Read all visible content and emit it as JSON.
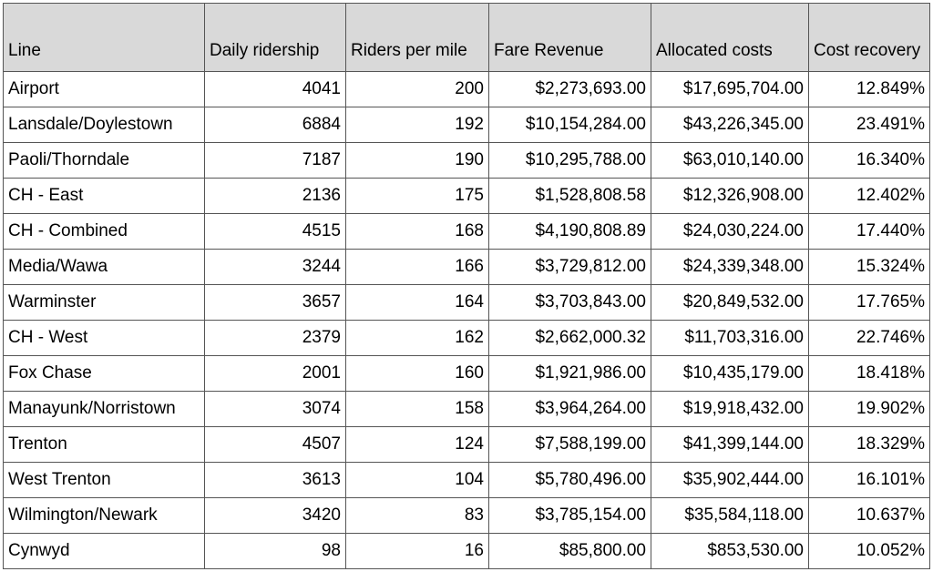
{
  "table": {
    "header": [
      "Line",
      "Daily ridership",
      "Riders per mile",
      "Fare Revenue",
      "Allocated costs",
      "Cost recovery"
    ],
    "rows": [
      [
        "Airport",
        "4041",
        "200",
        "$2,273,693.00",
        "$17,695,704.00",
        "12.849%"
      ],
      [
        "Lansdale/Doylestown",
        "6884",
        "192",
        "$10,154,284.00",
        "$43,226,345.00",
        "23.491%"
      ],
      [
        "Paoli/Thorndale",
        "7187",
        "190",
        "$10,295,788.00",
        "$63,010,140.00",
        "16.340%"
      ],
      [
        "CH - East",
        "2136",
        "175",
        "$1,528,808.58",
        "$12,326,908.00",
        "12.402%"
      ],
      [
        "CH - Combined",
        "4515",
        "168",
        "$4,190,808.89",
        "$24,030,224.00",
        "17.440%"
      ],
      [
        "Media/Wawa",
        "3244",
        "166",
        "$3,729,812.00",
        "$24,339,348.00",
        "15.324%"
      ],
      [
        "Warminster",
        "3657",
        "164",
        "$3,703,843.00",
        "$20,849,532.00",
        "17.765%"
      ],
      [
        "CH - West",
        "2379",
        "162",
        "$2,662,000.32",
        "$11,703,316.00",
        "22.746%"
      ],
      [
        "Fox Chase",
        "2001",
        "160",
        "$1,921,986.00",
        "$10,435,179.00",
        "18.418%"
      ],
      [
        "Manayunk/Norristown",
        "3074",
        "158",
        "$3,964,264.00",
        "$19,918,432.00",
        "19.902%"
      ],
      [
        "Trenton",
        "4507",
        "124",
        "$7,588,199.00",
        "$41,399,144.00",
        "18.329%"
      ],
      [
        "West Trenton",
        "3613",
        "104",
        "$5,780,496.00",
        "$35,902,444.00",
        "16.101%"
      ],
      [
        "Wilmington/Newark",
        "3420",
        "83",
        "$3,785,154.00",
        "$35,584,118.00",
        "10.637%"
      ],
      [
        "Cynwyd",
        "98",
        "16",
        "$85,800.00",
        "$853,530.00",
        "10.052%"
      ]
    ]
  }
}
